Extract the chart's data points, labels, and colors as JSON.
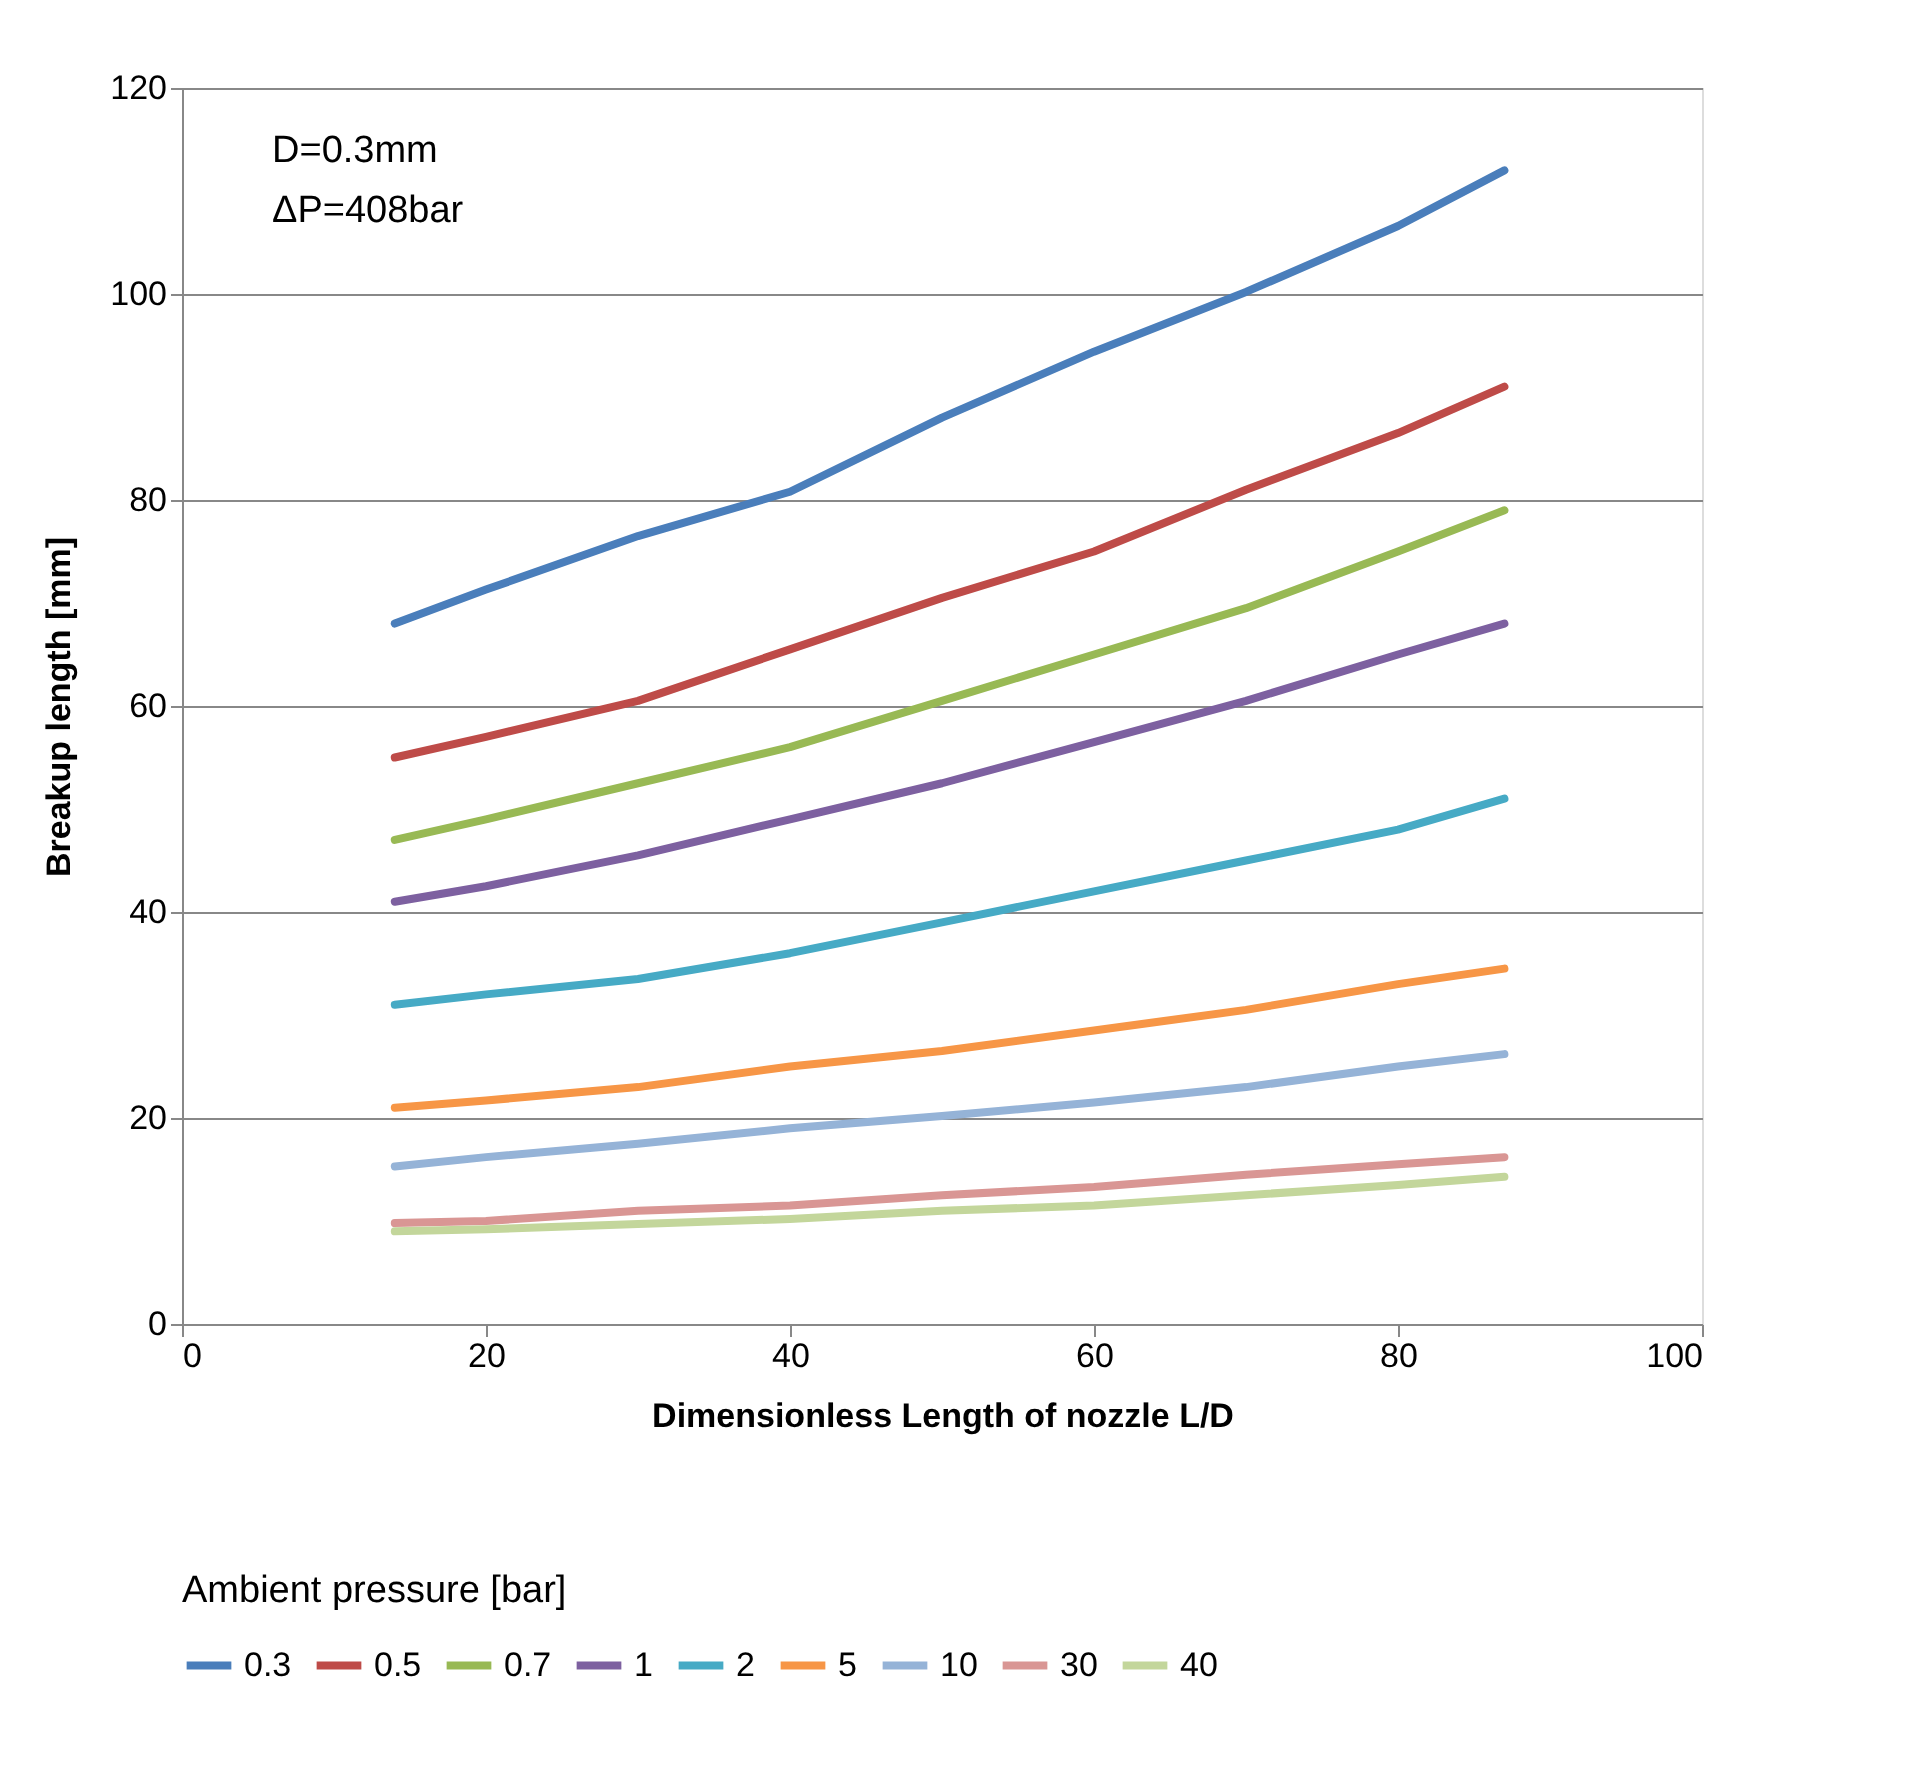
{
  "chart_data": {
    "type": "line",
    "xlabel": "Dimensionless Length of nozzle L/D",
    "ylabel": "Breakup length [mm]",
    "legend_title": "Ambient pressure [bar]",
    "annotations": [
      "D=0.3mm",
      "ΔP=408bar"
    ],
    "x": [
      14,
      20,
      30,
      40,
      50,
      60,
      70,
      80,
      87
    ],
    "series": [
      {
        "name": "0.3",
        "color": "#4a7ebb",
        "values": [
          68,
          71.3,
          76.5,
          80.8,
          88,
          94.4,
          100.2,
          106.6,
          112
        ]
      },
      {
        "name": "0.5",
        "color": "#be4b48",
        "values": [
          55,
          57,
          60.5,
          65.5,
          70.5,
          75,
          81,
          86.5,
          91
        ]
      },
      {
        "name": "0.7",
        "color": "#98b954",
        "values": [
          47,
          49,
          52.5,
          56,
          60.5,
          65,
          69.5,
          75,
          79
        ]
      },
      {
        "name": "1",
        "color": "#7d60a0",
        "values": [
          41,
          42.5,
          45.5,
          49,
          52.5,
          56.5,
          60.5,
          65,
          68
        ]
      },
      {
        "name": "2",
        "color": "#46aac5",
        "values": [
          31,
          32,
          33.5,
          36,
          39,
          42,
          45,
          48,
          51
        ]
      },
      {
        "name": "5",
        "color": "#f79646",
        "values": [
          21,
          21.7,
          23,
          25,
          26.5,
          28.5,
          30.5,
          33,
          34.5
        ]
      },
      {
        "name": "10",
        "color": "#95b3d7",
        "values": [
          15.3,
          16.2,
          17.5,
          19,
          20.2,
          21.5,
          23,
          25,
          26.2
        ]
      },
      {
        "name": "30",
        "color": "#d99694",
        "values": [
          9.8,
          10,
          11,
          11.5,
          12.5,
          13.3,
          14.5,
          15.5,
          16.2
        ]
      },
      {
        "name": "40",
        "color": "#c3d69b",
        "values": [
          9,
          9.2,
          9.7,
          10.2,
          11,
          11.5,
          12.5,
          13.5,
          14.3
        ]
      }
    ],
    "xlim": [
      0,
      100
    ],
    "xticks": [
      0,
      20,
      40,
      60,
      80,
      100
    ],
    "ylim": [
      0,
      120
    ],
    "yticks": [
      0,
      20,
      40,
      60,
      80,
      100,
      120
    ],
    "grid": "y",
    "legend": "bottom",
    "marker": "none",
    "line_style": "solid"
  }
}
